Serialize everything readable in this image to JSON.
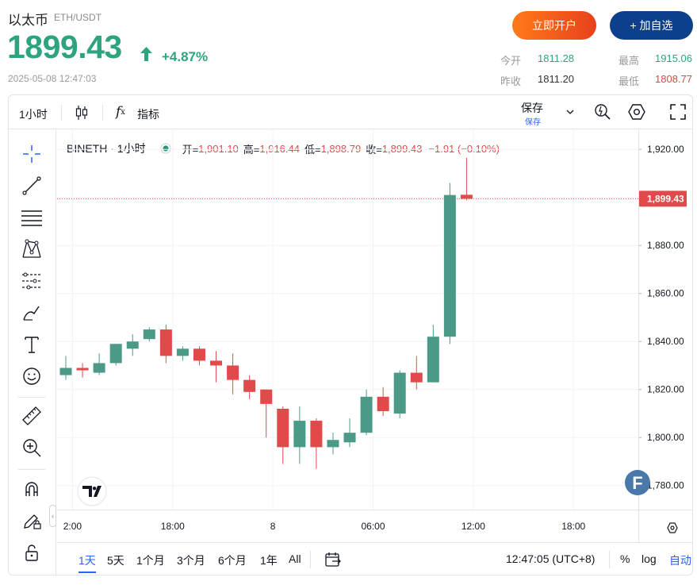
{
  "header": {
    "coin_name": "以太币",
    "pair": "ETH/USDT",
    "price": "1899.43",
    "change_pct": "+4.87%",
    "timestamp": "2025-05-08 12:47:03",
    "open_account_label": "立即开户",
    "add_watch_label": "+ 加自选",
    "stats": {
      "today_open_label": "今开",
      "today_open": "1811.28",
      "high_label": "最高",
      "high": "1915.06",
      "prev_close_label": "昨收",
      "prev_close": "1811.20",
      "low_label": "最低",
      "low": "1808.77"
    }
  },
  "toolbar": {
    "interval": "1小时",
    "indicators_label": "指标",
    "save_label": "保存",
    "save_sub": "保存"
  },
  "legend": {
    "symbol": "BINETH · 1小时",
    "open_label": "开=",
    "open": "1,901.10",
    "high_label": "高=",
    "high": "1,916.44",
    "low_label": "低=",
    "low": "1,898.79",
    "close_label": "收=",
    "close": "1,899.43",
    "change": "−1.91 (−0.10%)"
  },
  "bottom_bar": {
    "ranges": [
      "1天",
      "5天",
      "1个月",
      "3个月",
      "6个月",
      "1年",
      "All"
    ],
    "selected_range": "1天",
    "clock": "12:47:05 (UTC+8)",
    "percent_label": "%",
    "log_label": "log",
    "auto_label": "自动"
  },
  "colors": {
    "up": "#4a9a87",
    "down": "#e04a4a",
    "price_green": "#2ea37f",
    "accent_blue": "#2962ff",
    "brand_navy": "#0e3f8c"
  },
  "chart_data": {
    "type": "candlestick",
    "y_ticks": [
      "1,920.00",
      "1,900.00",
      "1,880.00",
      "1,860.00",
      "1,840.00",
      "1,820.00",
      "1,800.00",
      "1,780.00"
    ],
    "y_tick_values": [
      1920,
      1900,
      1880,
      1860,
      1840,
      1820,
      1800,
      1780
    ],
    "x_ticks": [
      "2:00",
      "18:00",
      "8",
      "06:00",
      "12:00",
      "18:00"
    ],
    "ylim": [
      1770,
      1928
    ],
    "last_price_label": "1,899.43",
    "last_price": 1899.43,
    "candles": [
      {
        "o": 1826,
        "h": 1834,
        "l": 1824,
        "c": 1829
      },
      {
        "o": 1829,
        "h": 1831,
        "l": 1825,
        "c": 1828
      },
      {
        "o": 1827,
        "h": 1835,
        "l": 1826,
        "c": 1831
      },
      {
        "o": 1831,
        "h": 1839,
        "l": 1830,
        "c": 1839
      },
      {
        "o": 1837,
        "h": 1843,
        "l": 1834,
        "c": 1840
      },
      {
        "o": 1841,
        "h": 1846,
        "l": 1840,
        "c": 1845
      },
      {
        "o": 1845,
        "h": 1847,
        "l": 1831,
        "c": 1834
      },
      {
        "o": 1834,
        "h": 1838,
        "l": 1832,
        "c": 1837
      },
      {
        "o": 1837,
        "h": 1838,
        "l": 1830,
        "c": 1832
      },
      {
        "o": 1832,
        "h": 1836,
        "l": 1823,
        "c": 1830
      },
      {
        "o": 1830,
        "h": 1835,
        "l": 1818,
        "c": 1824
      },
      {
        "o": 1824,
        "h": 1826,
        "l": 1816,
        "c": 1819
      },
      {
        "o": 1820,
        "h": 1820,
        "l": 1800,
        "c": 1814
      },
      {
        "o": 1812,
        "h": 1813,
        "l": 1789,
        "c": 1796
      },
      {
        "o": 1796,
        "h": 1813,
        "l": 1789,
        "c": 1807
      },
      {
        "o": 1807,
        "h": 1808,
        "l": 1787,
        "c": 1796
      },
      {
        "o": 1796,
        "h": 1802,
        "l": 1793,
        "c": 1799
      },
      {
        "o": 1798,
        "h": 1808,
        "l": 1796,
        "c": 1802
      },
      {
        "o": 1802,
        "h": 1820,
        "l": 1801,
        "c": 1817
      },
      {
        "o": 1817,
        "h": 1821,
        "l": 1809,
        "c": 1811
      },
      {
        "o": 1810,
        "h": 1828,
        "l": 1808,
        "c": 1827
      },
      {
        "o": 1827,
        "h": 1834,
        "l": 1820,
        "c": 1823
      },
      {
        "o": 1823,
        "h": 1847,
        "l": 1823,
        "c": 1842
      },
      {
        "o": 1842,
        "h": 1906,
        "l": 1839,
        "c": 1901
      },
      {
        "o": 1901.1,
        "h": 1916.44,
        "l": 1898.79,
        "c": 1899.43
      }
    ]
  }
}
